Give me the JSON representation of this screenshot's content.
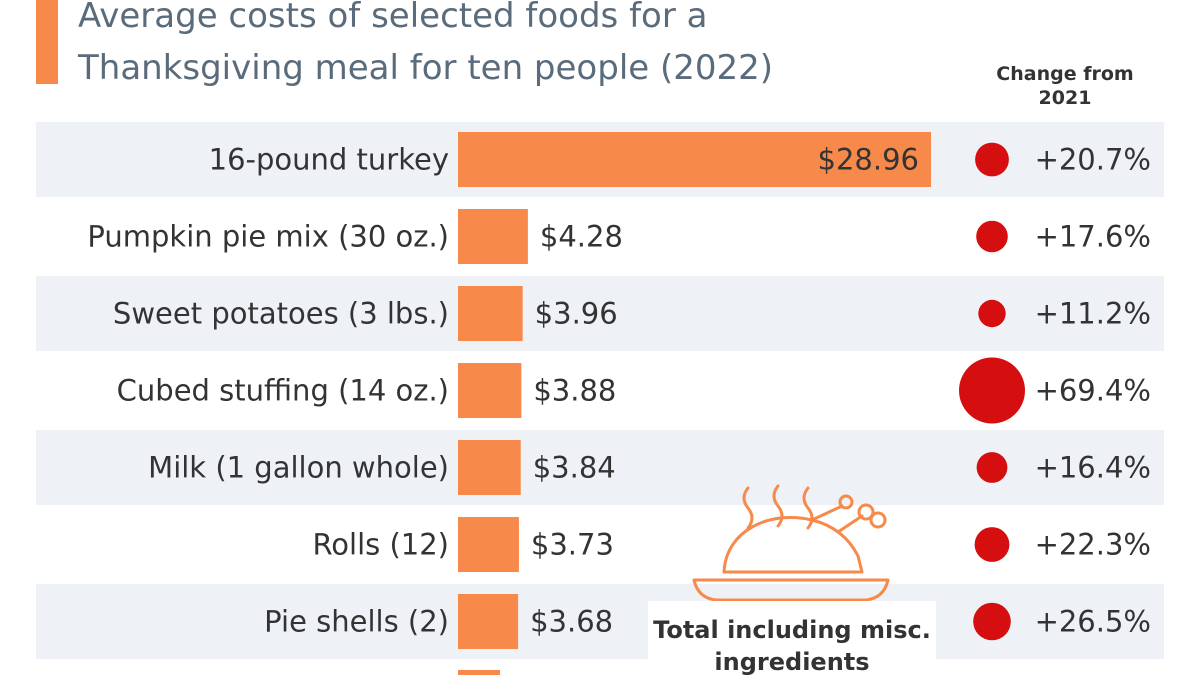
{
  "title": "Average costs of selected foods for a Thanksgiving meal for ten people (2022)",
  "change_header": "Change from 2021",
  "total_label": "Total including misc. ingredients",
  "colors": {
    "accent": "#f78a4a",
    "bar": "#f78a4a",
    "dot": "#d50f0f",
    "row_band": "#eef2f7",
    "title": "#5a6b7b",
    "icon": "#f78a4a"
  },
  "icon": "roast-turkey-icon",
  "chart_data": {
    "type": "bar",
    "orientation": "horizontal",
    "title": "Average costs of selected foods for a Thanksgiving meal for ten people (2022)",
    "categories": [
      "16-pound turkey",
      "Pumpkin pie mix (30 oz.)",
      "Sweet potatoes (3 lbs.)",
      "Cubed stuffing (14 oz.)",
      "Milk (1 gallon whole)",
      "Rolls (12)",
      "Pie shells (2)"
    ],
    "values": [
      28.96,
      4.28,
      3.96,
      3.88,
      3.84,
      3.73,
      3.68
    ],
    "value_labels": [
      "$28.96",
      "$4.28",
      "$3.96",
      "$3.88",
      "$3.84",
      "$3.73",
      "$3.68"
    ],
    "change_pct": [
      20.7,
      17.6,
      11.2,
      69.4,
      16.4,
      22.3,
      26.5
    ],
    "change_labels": [
      "+20.7%",
      "+17.6%",
      "+11.2%",
      "+69.4%",
      "+16.4%",
      "+22.3%",
      "+26.5%"
    ],
    "xlim": [
      0,
      28.96
    ],
    "grid": false,
    "legend": "none"
  }
}
